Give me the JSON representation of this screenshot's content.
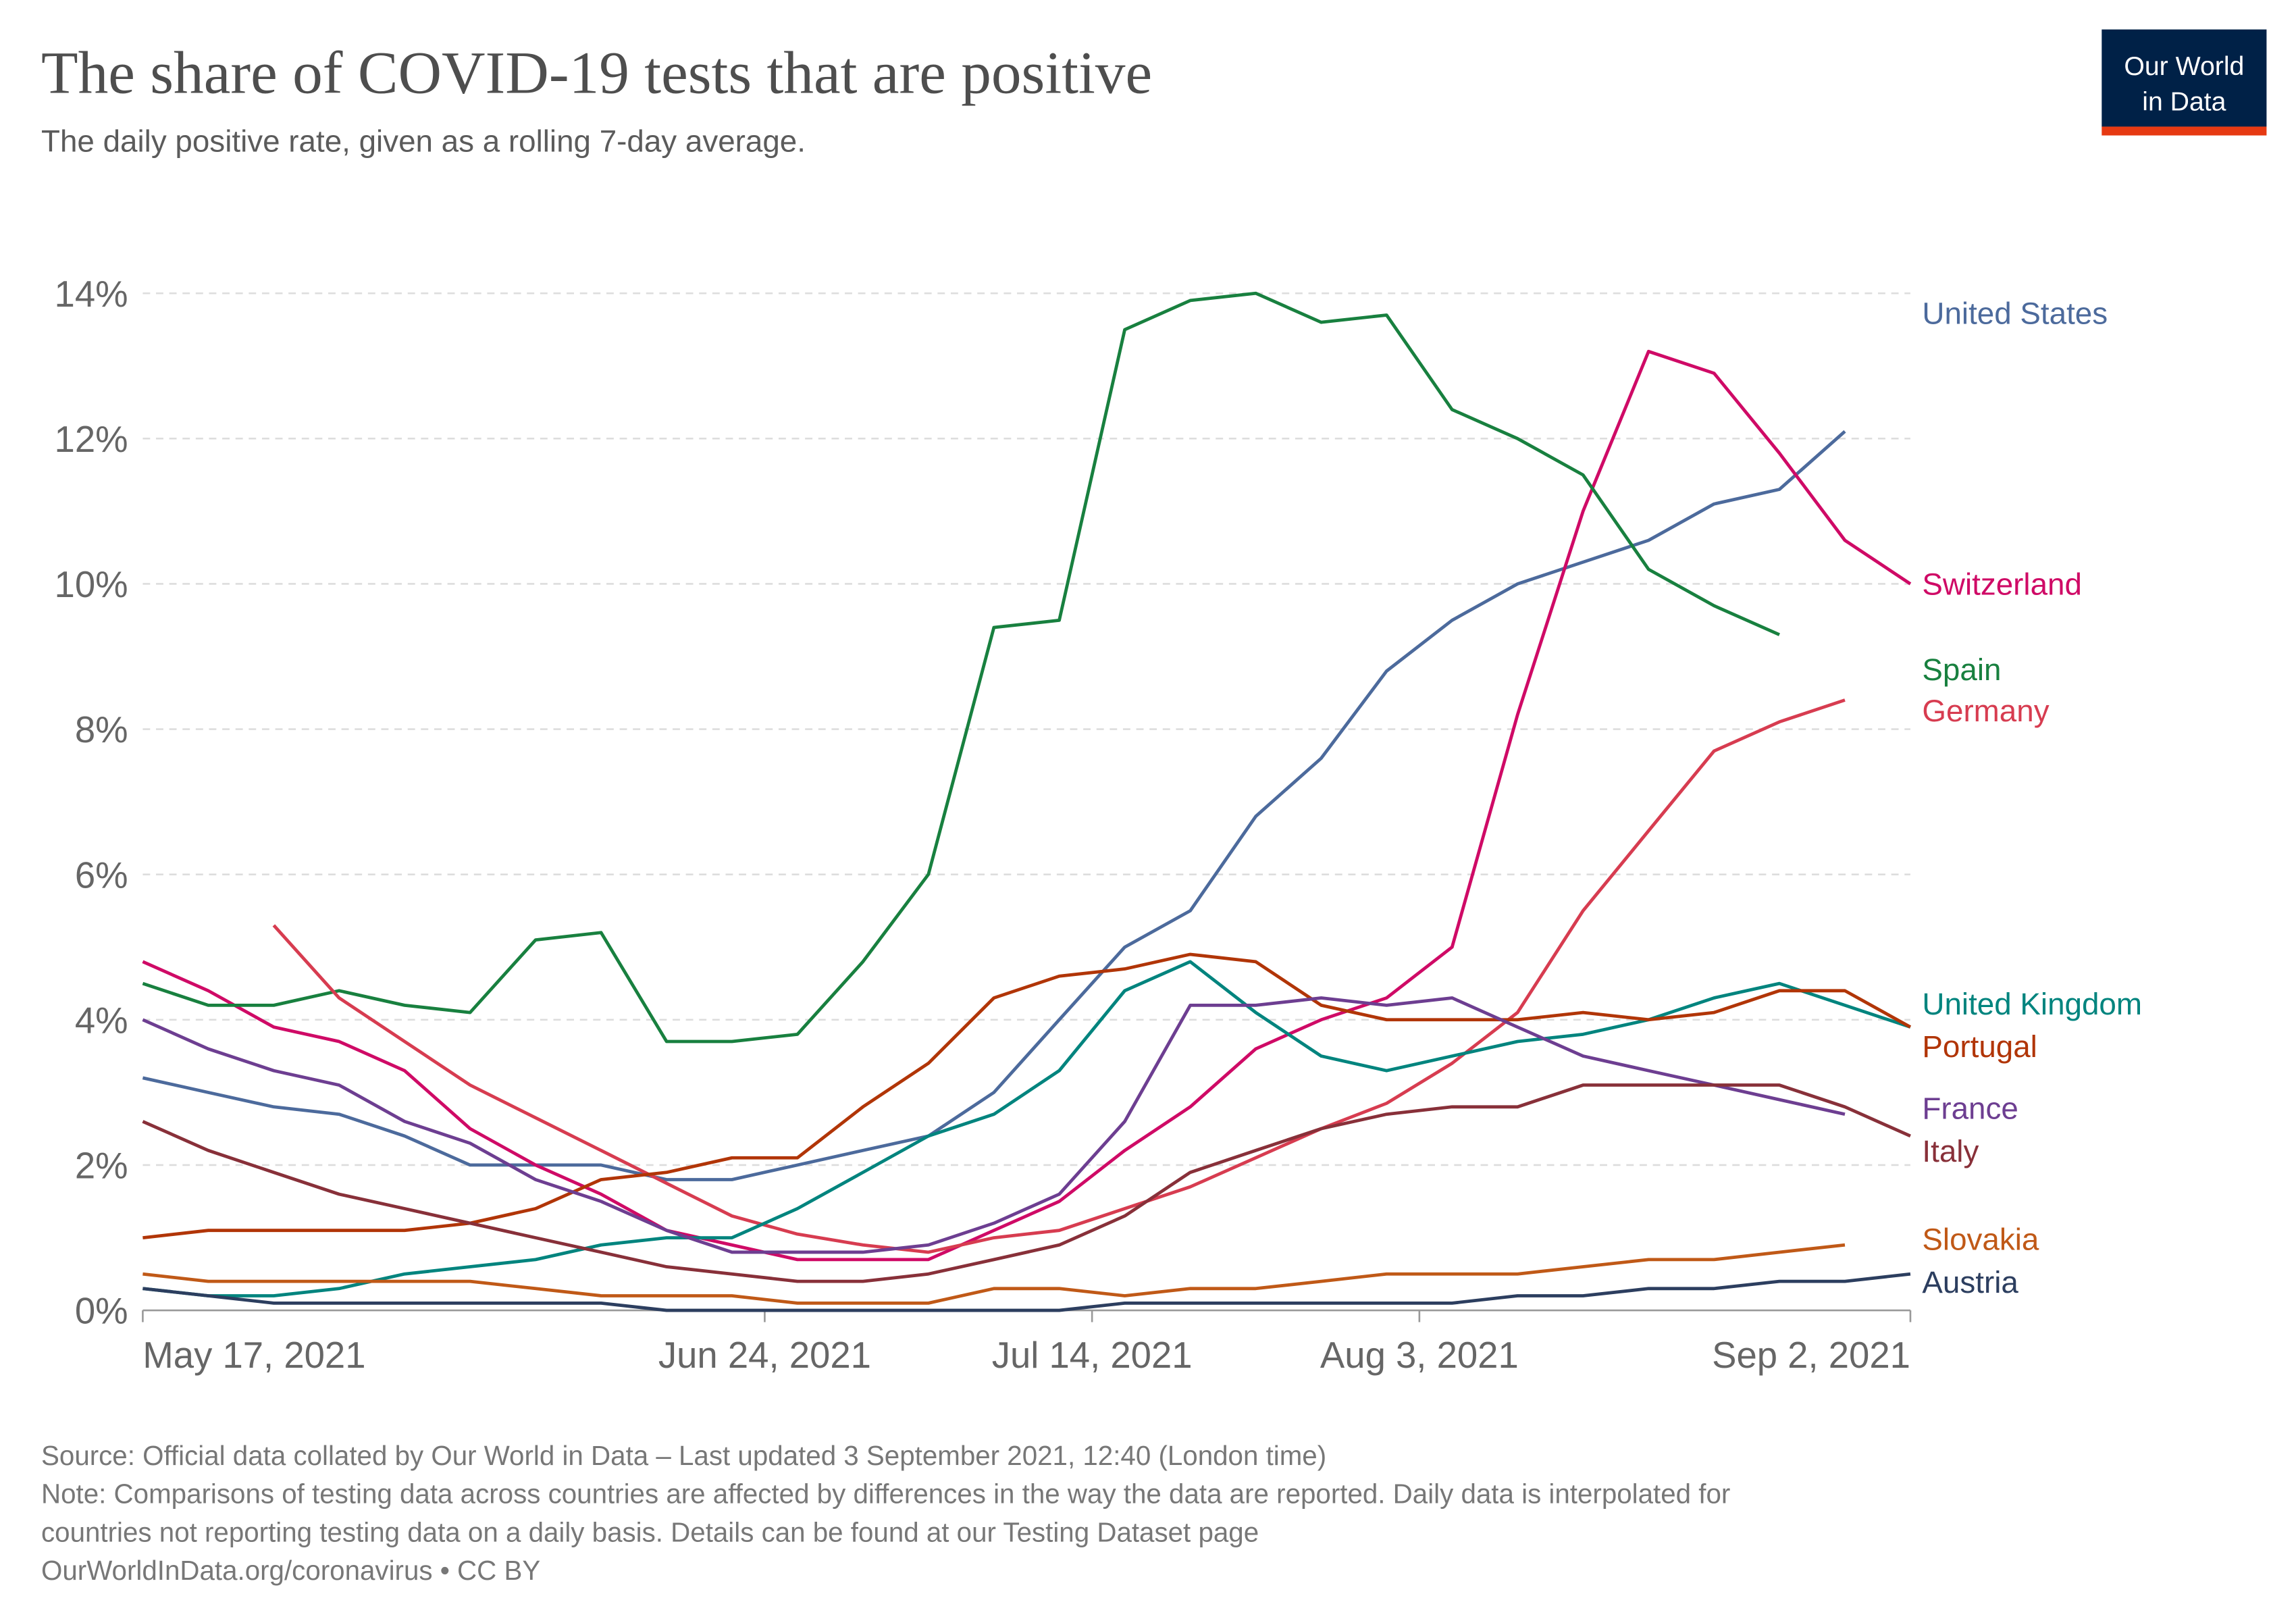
{
  "chart_data": {
    "type": "line",
    "title": "The share of COVID-19 tests that are positive",
    "subtitle": "The daily positive rate, given as a rolling 7-day average.",
    "logo": [
      "Our World",
      "in Data"
    ],
    "footer": [
      "Source: Official data collated by Our World in Data – Last updated 3 September 2021, 12:40 (London time)",
      "Note: Comparisons of testing data across countries are affected by differences in the way the data are reported. Daily data is interpolated for",
      "countries not reporting testing data on a daily basis. Details can be found at our Testing Dataset page",
      "OurWorldInData.org/coronavirus • CC BY"
    ],
    "x": [
      "2021-05-17",
      "2021-05-21",
      "2021-05-25",
      "2021-05-29",
      "2021-06-02",
      "2021-06-06",
      "2021-06-10",
      "2021-06-14",
      "2021-06-18",
      "2021-06-22",
      "2021-06-26",
      "2021-06-30",
      "2021-07-04",
      "2021-07-08",
      "2021-07-12",
      "2021-07-16",
      "2021-07-20",
      "2021-07-24",
      "2021-07-28",
      "2021-08-01",
      "2021-08-05",
      "2021-08-09",
      "2021-08-13",
      "2021-08-17",
      "2021-08-21",
      "2021-08-25",
      "2021-08-29",
      "2021-09-02"
    ],
    "xlim": [
      "2021-05-17",
      "2021-09-02"
    ],
    "xticks": [
      {
        "value": "2021-05-17",
        "label": "May 17, 2021"
      },
      {
        "value": "2021-06-24",
        "label": "Jun 24, 2021"
      },
      {
        "value": "2021-07-14",
        "label": "Jul 14, 2021"
      },
      {
        "value": "2021-08-03",
        "label": "Aug 3, 2021"
      },
      {
        "value": "2021-09-02",
        "label": "Sep 2, 2021"
      }
    ],
    "ylim": [
      0,
      15.2
    ],
    "yticks": [
      {
        "value": 0,
        "label": "0%"
      },
      {
        "value": 2,
        "label": "2%"
      },
      {
        "value": 4,
        "label": "4%"
      },
      {
        "value": 6,
        "label": "6%"
      },
      {
        "value": 8,
        "label": "8%"
      },
      {
        "value": 10,
        "label": "10%"
      },
      {
        "value": 12,
        "label": "12%"
      },
      {
        "value": 14,
        "label": "14%"
      }
    ],
    "grid": true,
    "series": [
      {
        "name": "United States",
        "color": "#4c6a9c",
        "values": [
          3.2,
          3.0,
          2.8,
          2.7,
          2.4,
          2.0,
          2.0,
          2.0,
          1.8,
          1.8,
          2.0,
          2.2,
          2.4,
          3.0,
          4.0,
          5.0,
          5.5,
          6.8,
          7.6,
          8.8,
          9.5,
          10.0,
          10.3,
          10.6,
          11.1,
          11.3,
          12.1,
          null
        ]
      },
      {
        "name": "Switzerland",
        "color": "#cf0a66",
        "values": [
          4.8,
          4.4,
          3.9,
          3.7,
          3.3,
          2.5,
          2.0,
          1.6,
          1.1,
          0.9,
          0.7,
          0.7,
          0.7,
          1.1,
          1.5,
          2.2,
          2.8,
          3.6,
          4.0,
          4.3,
          5.0,
          8.2,
          11.0,
          13.2,
          12.9,
          11.8,
          10.6,
          10.0
        ]
      },
      {
        "name": "Spain",
        "color": "#18803f",
        "values": [
          4.5,
          4.2,
          4.2,
          4.4,
          4.2,
          4.1,
          5.1,
          5.2,
          3.7,
          3.7,
          3.8,
          4.8,
          6.0,
          9.4,
          9.5,
          13.5,
          13.9,
          14.0,
          13.6,
          13.7,
          12.4,
          12.0,
          11.5,
          10.2,
          9.7,
          9.3,
          null,
          null
        ]
      },
      {
        "name": "Germany",
        "color": "#d73c50",
        "values": [
          null,
          null,
          5.3,
          4.3,
          3.7,
          3.1,
          2.65,
          2.2,
          1.75,
          1.3,
          1.05,
          0.9,
          0.8,
          1.0,
          1.1,
          1.4,
          1.7,
          2.1,
          2.5,
          2.85,
          3.4,
          4.1,
          5.5,
          6.6,
          7.7,
          8.1,
          8.4,
          null
        ]
      },
      {
        "name": "United Kingdom",
        "color": "#00847e",
        "values": [
          0.3,
          0.2,
          0.2,
          0.3,
          0.5,
          0.6,
          0.7,
          0.9,
          1.0,
          1.0,
          1.4,
          1.9,
          2.4,
          2.7,
          3.3,
          4.4,
          4.8,
          4.1,
          3.5,
          3.3,
          3.5,
          3.7,
          3.8,
          4.0,
          4.3,
          4.5,
          4.2,
          3.9
        ]
      },
      {
        "name": "Portugal",
        "color": "#b13507",
        "values": [
          1.0,
          1.1,
          1.1,
          1.1,
          1.1,
          1.2,
          1.4,
          1.8,
          1.9,
          2.1,
          2.1,
          2.8,
          3.4,
          4.3,
          4.6,
          4.7,
          4.9,
          4.8,
          4.2,
          4.0,
          4.0,
          4.0,
          4.1,
          4.0,
          4.1,
          4.4,
          4.4,
          3.9
        ]
      },
      {
        "name": "France",
        "color": "#6d3e91",
        "values": [
          4.0,
          3.6,
          3.3,
          3.1,
          2.6,
          2.3,
          1.8,
          1.5,
          1.1,
          0.8,
          0.8,
          0.8,
          0.9,
          1.2,
          1.6,
          2.6,
          4.2,
          4.2,
          4.3,
          4.2,
          4.3,
          3.9,
          3.5,
          3.3,
          3.1,
          2.9,
          2.7,
          null
        ]
      },
      {
        "name": "Italy",
        "color": "#883039",
        "values": [
          2.6,
          2.2,
          1.9,
          1.6,
          1.4,
          1.2,
          1.0,
          0.8,
          0.6,
          0.5,
          0.4,
          0.4,
          0.5,
          0.7,
          0.9,
          1.3,
          1.9,
          2.2,
          2.5,
          2.7,
          2.8,
          2.8,
          3.1,
          3.1,
          3.1,
          3.1,
          2.8,
          2.4
        ]
      },
      {
        "name": "Slovakia",
        "color": "#c05917",
        "values": [
          0.5,
          0.4,
          0.4,
          0.4,
          0.4,
          0.4,
          0.3,
          0.2,
          0.2,
          0.2,
          0.1,
          0.1,
          0.1,
          0.3,
          0.3,
          0.2,
          0.3,
          0.3,
          0.4,
          0.5,
          0.5,
          0.5,
          0.6,
          0.7,
          0.7,
          0.8,
          0.9,
          null
        ]
      },
      {
        "name": "Austria",
        "color": "#2c3e5f",
        "values": [
          0.3,
          0.2,
          0.1,
          0.1,
          0.1,
          0.1,
          0.1,
          0.1,
          0.0,
          0.0,
          0.0,
          0.0,
          0.0,
          0.0,
          0.0,
          0.1,
          0.1,
          0.1,
          0.1,
          0.1,
          0.1,
          0.2,
          0.2,
          0.3,
          0.3,
          0.4,
          0.4,
          0.5
        ]
      }
    ]
  }
}
